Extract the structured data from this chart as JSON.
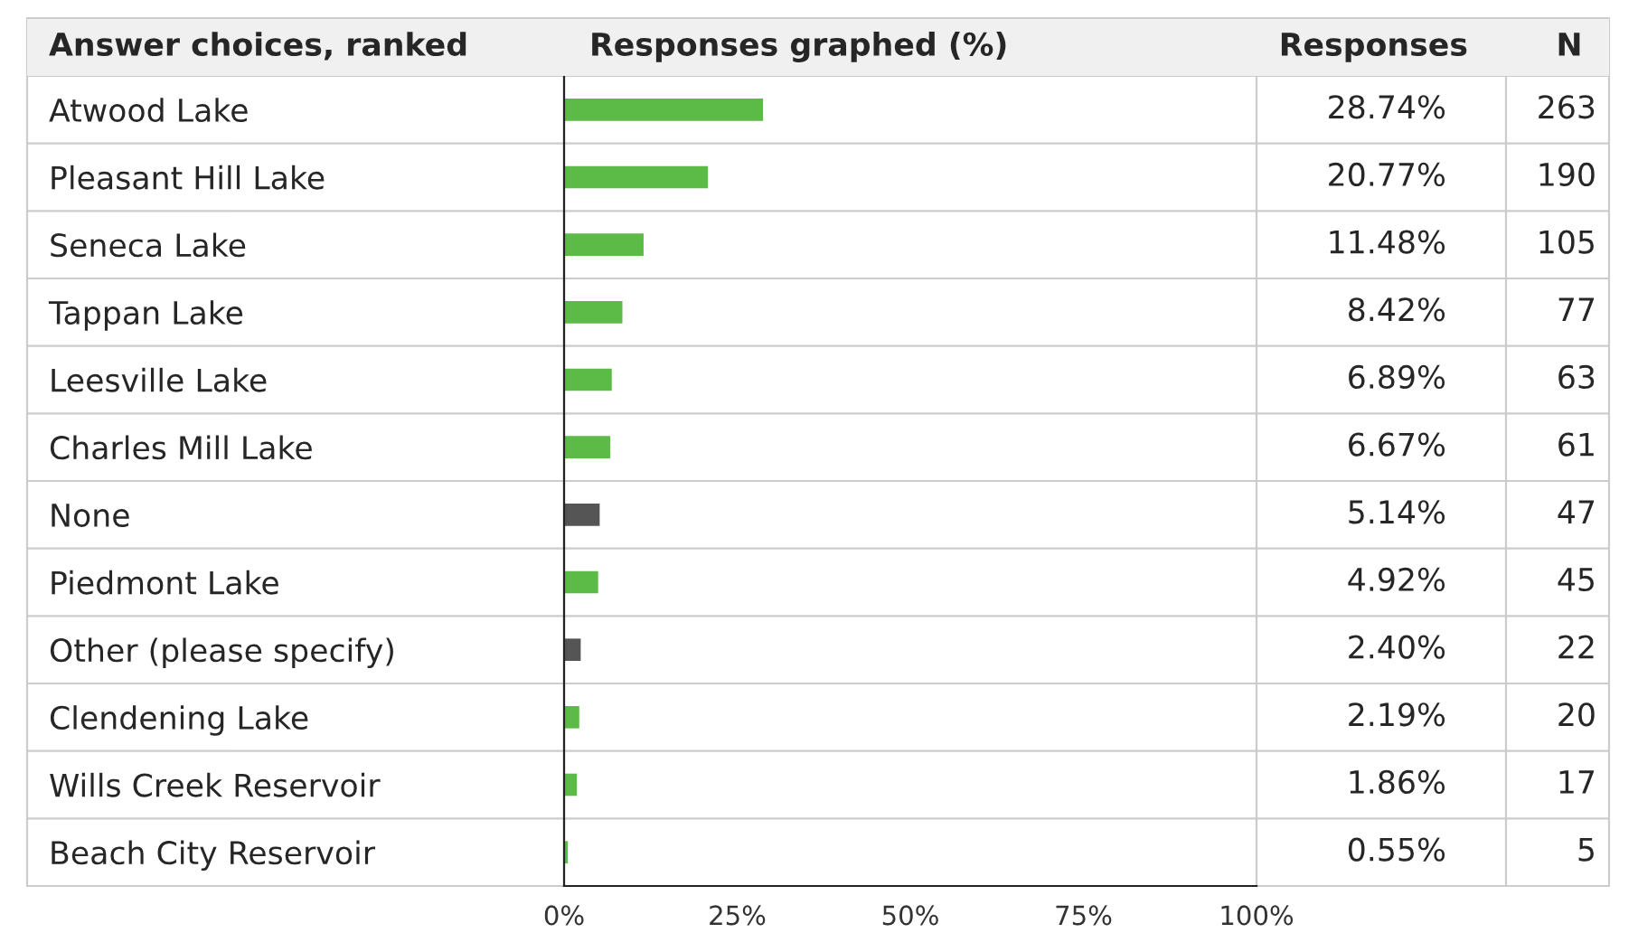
{
  "chart_data": {
    "type": "bar",
    "orientation": "horizontal",
    "title": "Responses graphed (%)",
    "ylabel": "Answer choices, ranked",
    "categories": [
      "Atwood Lake",
      "Pleasant Hill Lake",
      "Seneca Lake",
      "Tappan Lake",
      "Leesville Lake",
      "Charles Mill Lake",
      "None",
      "Piedmont Lake",
      "Other (please specify)",
      "Clendening Lake",
      "Wills Creek Reservoir",
      "Beach City Reservoir"
    ],
    "values": [
      28.74,
      20.77,
      11.48,
      8.42,
      6.89,
      6.67,
      5.14,
      4.92,
      2.4,
      2.19,
      1.86,
      0.55
    ],
    "value_labels": [
      "28.74%",
      "20.77%",
      "11.48%",
      "8.42%",
      "6.89%",
      "6.67%",
      "5.14%",
      "4.92%",
      "2.40%",
      "2.19%",
      "1.86%",
      "0.55%"
    ],
    "colors": [
      "#5bbb46",
      "#5bbb46",
      "#5bbb46",
      "#5bbb46",
      "#5bbb46",
      "#5bbb46",
      "#555555",
      "#5bbb46",
      "#555555",
      "#5bbb46",
      "#5bbb46",
      "#5bbb46"
    ],
    "xlim": [
      0,
      100
    ],
    "xticks": [
      {
        "value": 0,
        "label": "0%"
      },
      {
        "value": 25,
        "label": "25%"
      },
      {
        "value": 50,
        "label": "50%"
      },
      {
        "value": 75,
        "label": "75%"
      },
      {
        "value": 100,
        "label": "100%"
      }
    ],
    "annotations": [
      "Responses",
      "N",
      "263",
      "190",
      "105",
      "77",
      "63",
      "61",
      "47",
      "45",
      "22",
      "20",
      "17",
      "5"
    ],
    "grid": false,
    "legend": false
  }
}
